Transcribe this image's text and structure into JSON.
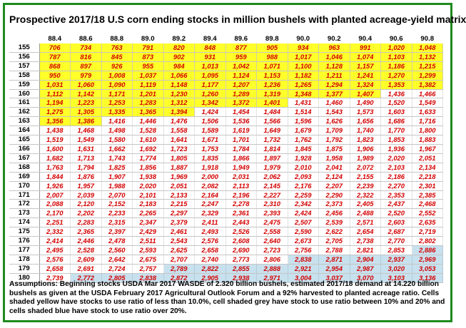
{
  "title": "Prospective 2017/18 U.S corn ending stocks in million bushels with planted acreage-yield matrix",
  "assumptions": "Assumptions:  Beginning stocks USDA Mar 2017  WASDE of 2.320 billion bushels,  estimated 2017/18 demand at 14.220 billion bushels as given at the USDA February 2017 Agricultural Outlook Forum and a 92% harvested to planted acreage ratio.  Cells shaded yellow have stocks to use ratio of less than 10.0%, cell shaded grey have stock to use ratio between 10% and 20% and cells shaded blue have stock to use ratio over 20%.",
  "colors": {
    "low": "#ffff2a",
    "mid": "#ffffff",
    "high": "#c8e1ee",
    "value_text": "#d40000",
    "frame": "#1e8a1e"
  },
  "chart_data": {
    "type": "table",
    "yields": [
      "88.4",
      "88.6",
      "88.8",
      "89.0",
      "89.2",
      "89.4",
      "89.6",
      "89.8",
      "90.0",
      "90.2",
      "90.4",
      "90.6",
      "90.8"
    ],
    "acreages": [
      "155",
      "156",
      "157",
      "158",
      "159",
      "160",
      "161",
      "162",
      "163",
      "164",
      "165",
      "166",
      "167",
      "168",
      "169",
      "170",
      "171",
      "172",
      "173",
      "174",
      "175",
      "176",
      "177",
      "178",
      "179",
      "180"
    ],
    "values": [
      [
        "706",
        "734",
        "763",
        "791",
        "820",
        "848",
        "877",
        "905",
        "934",
        "963",
        "991",
        "1,020",
        "1,048"
      ],
      [
        "787",
        "816",
        "845",
        "873",
        "902",
        "931",
        "959",
        "988",
        "1,017",
        "1,046",
        "1,074",
        "1,103",
        "1,132"
      ],
      [
        "868",
        "897",
        "926",
        "955",
        "984",
        "1,013",
        "1,042",
        "1,071",
        "1,100",
        "1,128",
        "1,157",
        "1,186",
        "1,215"
      ],
      [
        "950",
        "979",
        "1,008",
        "1,037",
        "1,066",
        "1,095",
        "1,124",
        "1,153",
        "1,182",
        "1,211",
        "1,241",
        "1,270",
        "1,299"
      ],
      [
        "1,031",
        "1,060",
        "1,090",
        "1,119",
        "1,148",
        "1,177",
        "1,207",
        "1,236",
        "1,265",
        "1,294",
        "1,324",
        "1,353",
        "1,382"
      ],
      [
        "1,112",
        "1,142",
        "1,171",
        "1,201",
        "1,230",
        "1,260",
        "1,289",
        "1,319",
        "1,348",
        "1,377",
        "1,407",
        "1,436",
        "1,466"
      ],
      [
        "1,194",
        "1,223",
        "1,253",
        "1,283",
        "1,312",
        "1,342",
        "1,372",
        "1,401",
        "1,431",
        "1,460",
        "1,490",
        "1,520",
        "1,549"
      ],
      [
        "1,275",
        "1,305",
        "1,335",
        "1,365",
        "1,394",
        "1,424",
        "1,454",
        "1,484",
        "1,514",
        "1,543",
        "1,573",
        "1,603",
        "1,633"
      ],
      [
        "1,356",
        "1,386",
        "1,416",
        "1,446",
        "1,476",
        "1,506",
        "1,536",
        "1,566",
        "1,596",
        "1,626",
        "1,656",
        "1,686",
        "1,716"
      ],
      [
        "1,438",
        "1,468",
        "1,498",
        "1,528",
        "1,558",
        "1,589",
        "1,619",
        "1,649",
        "1,679",
        "1,709",
        "1,740",
        "1,770",
        "1,800"
      ],
      [
        "1,519",
        "1,549",
        "1,580",
        "1,610",
        "1,641",
        "1,671",
        "1,701",
        "1,732",
        "1,762",
        "1,792",
        "1,823",
        "1,853",
        "1,883"
      ],
      [
        "1,600",
        "1,631",
        "1,662",
        "1,692",
        "1,723",
        "1,753",
        "1,784",
        "1,814",
        "1,845",
        "1,875",
        "1,906",
        "1,936",
        "1,967"
      ],
      [
        "1,682",
        "1,713",
        "1,743",
        "1,774",
        "1,805",
        "1,835",
        "1,866",
        "1,897",
        "1,928",
        "1,958",
        "1,989",
        "2,020",
        "2,051"
      ],
      [
        "1,763",
        "1,794",
        "1,825",
        "1,856",
        "1,887",
        "1,918",
        "1,949",
        "1,979",
        "2,010",
        "2,041",
        "2,072",
        "2,103",
        "2,134"
      ],
      [
        "1,844",
        "1,876",
        "1,907",
        "1,938",
        "1,969",
        "2,000",
        "2,031",
        "2,062",
        "2,093",
        "2,124",
        "2,155",
        "2,186",
        "2,218"
      ],
      [
        "1,926",
        "1,957",
        "1,988",
        "2,020",
        "2,051",
        "2,082",
        "2,113",
        "2,145",
        "2,176",
        "2,207",
        "2,239",
        "2,270",
        "2,301"
      ],
      [
        "2,007",
        "2,039",
        "2,070",
        "2,101",
        "2,133",
        "2,164",
        "2,196",
        "2,227",
        "2,259",
        "2,290",
        "2,322",
        "2,353",
        "2,385"
      ],
      [
        "2,088",
        "2,120",
        "2,152",
        "2,183",
        "2,215",
        "2,247",
        "2,278",
        "2,310",
        "2,342",
        "2,373",
        "2,405",
        "2,437",
        "2,468"
      ],
      [
        "2,170",
        "2,202",
        "2,233",
        "2,265",
        "2,297",
        "2,329",
        "2,361",
        "2,393",
        "2,424",
        "2,456",
        "2,488",
        "2,520",
        "2,552"
      ],
      [
        "2,251",
        "2,283",
        "2,315",
        "2,347",
        "2,379",
        "2,411",
        "2,443",
        "2,475",
        "2,507",
        "2,539",
        "2,571",
        "2,603",
        "2,635"
      ],
      [
        "2,332",
        "2,365",
        "2,397",
        "2,429",
        "2,461",
        "2,493",
        "2,526",
        "2,558",
        "2,590",
        "2,622",
        "2,654",
        "2,687",
        "2,719"
      ],
      [
        "2,414",
        "2,446",
        "2,478",
        "2,511",
        "2,543",
        "2,576",
        "2,608",
        "2,640",
        "2,673",
        "2,705",
        "2,738",
        "2,770",
        "2,802"
      ],
      [
        "2,495",
        "2,528",
        "2,560",
        "2,593",
        "2,625",
        "2,658",
        "2,690",
        "2,723",
        "2,756",
        "2,788",
        "2,821",
        "2,853",
        "2,886"
      ],
      [
        "2,576",
        "2,609",
        "2,642",
        "2,675",
        "2,707",
        "2,740",
        "2,773",
        "2,806",
        "2,838",
        "2,871",
        "2,904",
        "2,937",
        "2,969"
      ],
      [
        "2,658",
        "2,691",
        "2,724",
        "2,757",
        "2,789",
        "2,822",
        "2,855",
        "2,888",
        "2,921",
        "2,954",
        "2,987",
        "3,020",
        "3,053"
      ],
      [
        "2,739",
        "2,772",
        "2,805",
        "2,838",
        "2,872",
        "2,905",
        "2,938",
        "2,971",
        "3,004",
        "3,037",
        "3,070",
        "3,103",
        "3,136"
      ]
    ],
    "shading": [
      [
        "low",
        "low",
        "low",
        "low",
        "low",
        "low",
        "low",
        "low",
        "low",
        "low",
        "low",
        "low",
        "low"
      ],
      [
        "low",
        "low",
        "low",
        "low",
        "low",
        "low",
        "low",
        "low",
        "low",
        "low",
        "low",
        "low",
        "low"
      ],
      [
        "low",
        "low",
        "low",
        "low",
        "low",
        "low",
        "low",
        "low",
        "low",
        "low",
        "low",
        "low",
        "low"
      ],
      [
        "low",
        "low",
        "low",
        "low",
        "low",
        "low",
        "low",
        "low",
        "low",
        "low",
        "low",
        "low",
        "low"
      ],
      [
        "low",
        "low",
        "low",
        "low",
        "low",
        "low",
        "low",
        "low",
        "low",
        "low",
        "low",
        "low",
        "low"
      ],
      [
        "low",
        "low",
        "low",
        "low",
        "low",
        "low",
        "low",
        "low",
        "low",
        "low",
        "low",
        "mid",
        "mid"
      ],
      [
        "low",
        "low",
        "low",
        "low",
        "low",
        "low",
        "low",
        "low",
        "mid",
        "mid",
        "mid",
        "mid",
        "mid"
      ],
      [
        "low",
        "low",
        "low",
        "low",
        "low",
        "mid",
        "mid",
        "mid",
        "mid",
        "mid",
        "mid",
        "mid",
        "mid"
      ],
      [
        "low",
        "low",
        "mid",
        "mid",
        "mid",
        "mid",
        "mid",
        "mid",
        "mid",
        "mid",
        "mid",
        "mid",
        "mid"
      ],
      [
        "mid",
        "mid",
        "mid",
        "mid",
        "mid",
        "mid",
        "mid",
        "mid",
        "mid",
        "mid",
        "mid",
        "mid",
        "mid"
      ],
      [
        "mid",
        "mid",
        "mid",
        "mid",
        "mid",
        "mid",
        "mid",
        "mid",
        "mid",
        "mid",
        "mid",
        "mid",
        "mid"
      ],
      [
        "mid",
        "mid",
        "mid",
        "mid",
        "mid",
        "mid",
        "mid",
        "mid",
        "mid",
        "mid",
        "mid",
        "mid",
        "mid"
      ],
      [
        "mid",
        "mid",
        "mid",
        "mid",
        "mid",
        "mid",
        "mid",
        "mid",
        "mid",
        "mid",
        "mid",
        "mid",
        "mid"
      ],
      [
        "mid",
        "mid",
        "mid",
        "mid",
        "mid",
        "mid",
        "mid",
        "mid",
        "mid",
        "mid",
        "mid",
        "mid",
        "mid"
      ],
      [
        "mid",
        "mid",
        "mid",
        "mid",
        "mid",
        "mid",
        "mid",
        "mid",
        "mid",
        "mid",
        "mid",
        "mid",
        "mid"
      ],
      [
        "mid",
        "mid",
        "mid",
        "mid",
        "mid",
        "mid",
        "mid",
        "mid",
        "mid",
        "mid",
        "mid",
        "mid",
        "mid"
      ],
      [
        "mid",
        "mid",
        "mid",
        "mid",
        "mid",
        "mid",
        "mid",
        "mid",
        "mid",
        "mid",
        "mid",
        "mid",
        "mid"
      ],
      [
        "mid",
        "mid",
        "mid",
        "mid",
        "mid",
        "mid",
        "mid",
        "mid",
        "mid",
        "mid",
        "mid",
        "mid",
        "mid"
      ],
      [
        "mid",
        "mid",
        "mid",
        "mid",
        "mid",
        "mid",
        "mid",
        "mid",
        "mid",
        "mid",
        "mid",
        "mid",
        "mid"
      ],
      [
        "mid",
        "mid",
        "mid",
        "mid",
        "mid",
        "mid",
        "mid",
        "mid",
        "mid",
        "mid",
        "mid",
        "mid",
        "mid"
      ],
      [
        "mid",
        "mid",
        "mid",
        "mid",
        "mid",
        "mid",
        "mid",
        "mid",
        "mid",
        "mid",
        "mid",
        "mid",
        "mid"
      ],
      [
        "mid",
        "mid",
        "mid",
        "mid",
        "mid",
        "mid",
        "mid",
        "mid",
        "mid",
        "mid",
        "mid",
        "mid",
        "mid"
      ],
      [
        "mid",
        "mid",
        "mid",
        "mid",
        "mid",
        "mid",
        "mid",
        "mid",
        "mid",
        "mid",
        "mid",
        "mid",
        "high"
      ],
      [
        "mid",
        "mid",
        "mid",
        "mid",
        "mid",
        "mid",
        "mid",
        "mid",
        "high",
        "high",
        "high",
        "high",
        "high"
      ],
      [
        "mid",
        "mid",
        "mid",
        "mid",
        "high",
        "high",
        "high",
        "high",
        "high",
        "high",
        "high",
        "high",
        "high"
      ],
      [
        "mid",
        "high",
        "high",
        "high",
        "high",
        "high",
        "high",
        "high",
        "high",
        "high",
        "high",
        "high",
        "high"
      ]
    ]
  }
}
